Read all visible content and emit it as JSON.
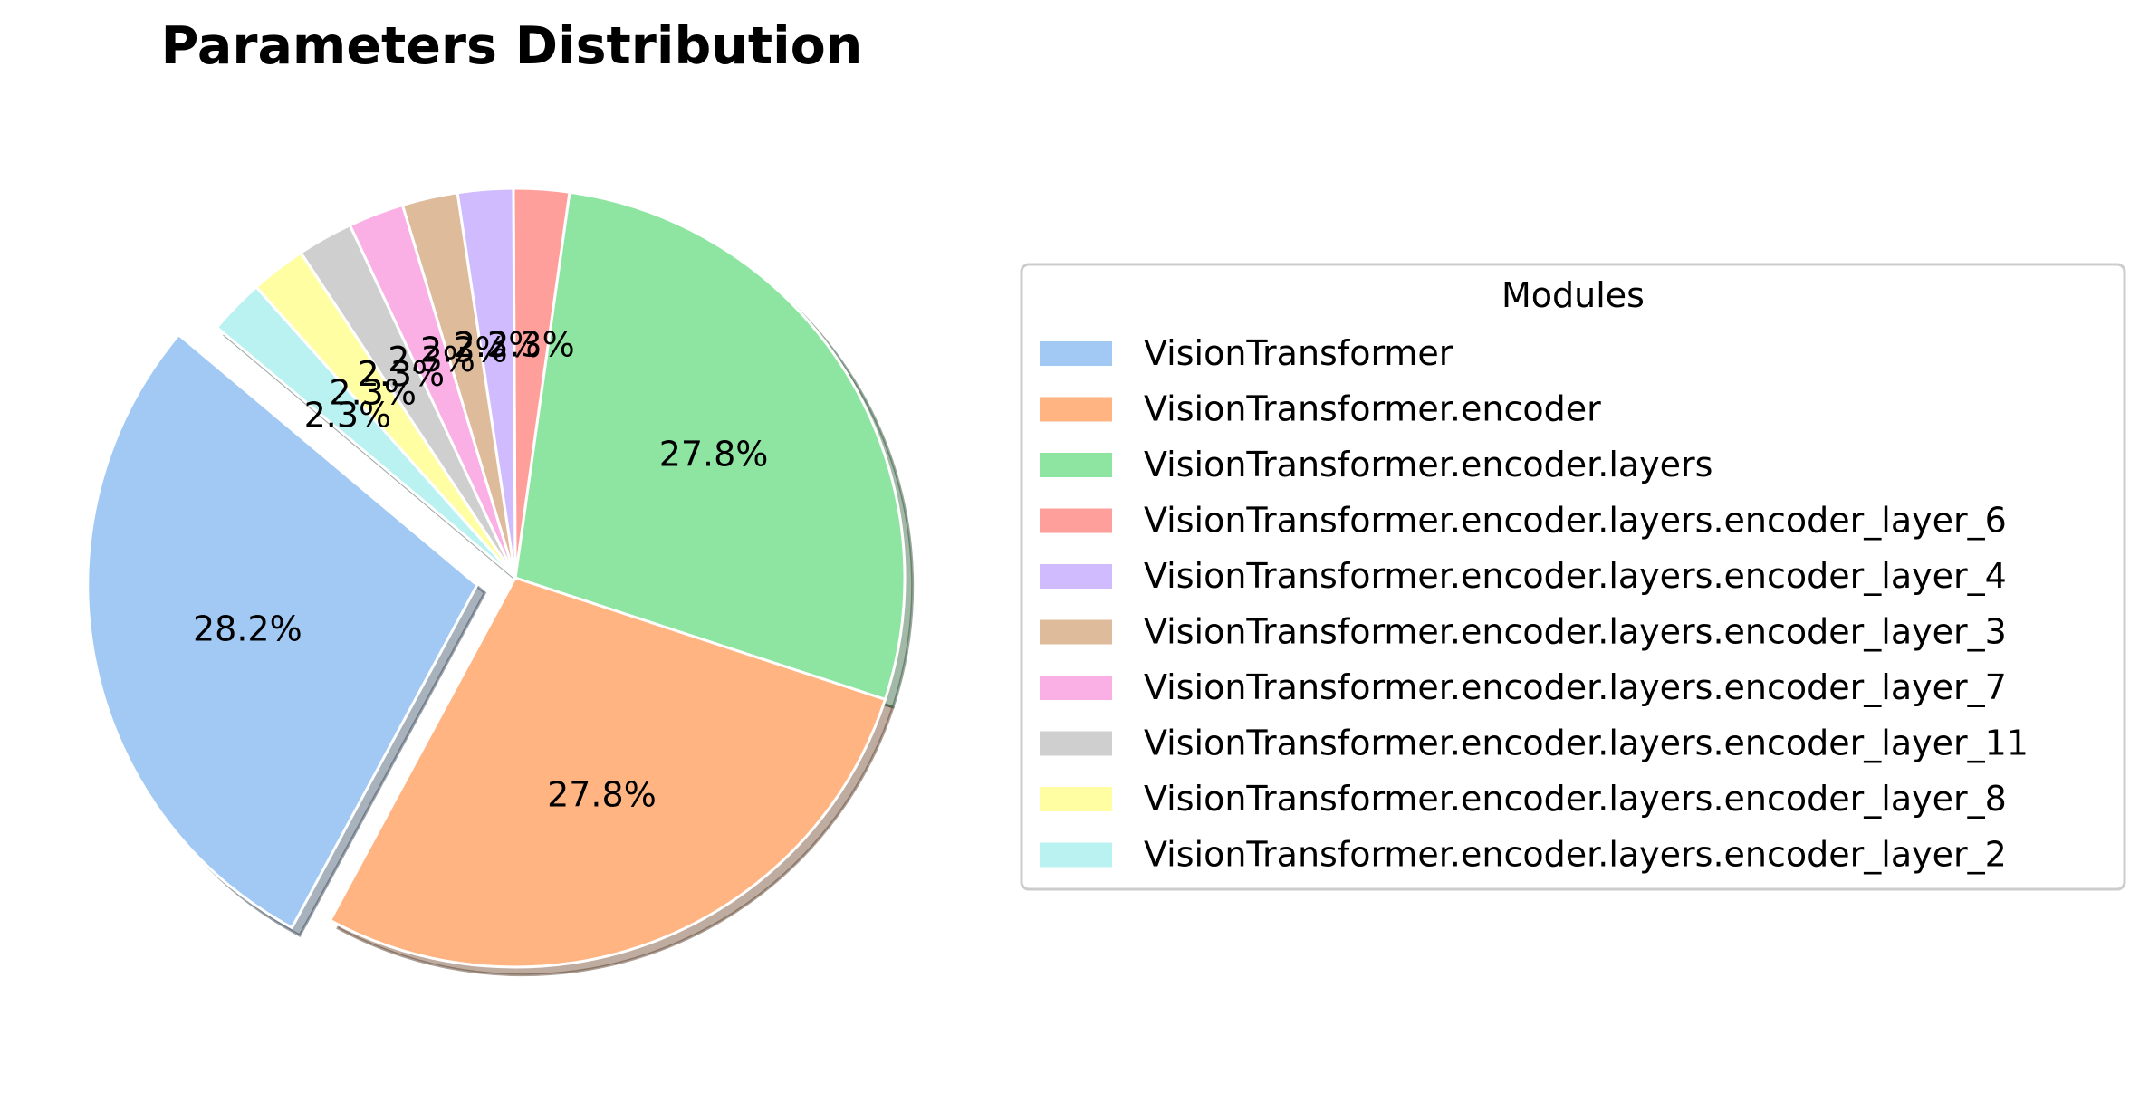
{
  "chart_data": {
    "type": "pie",
    "title": "Parameters Distribution",
    "legend_title": "Modules",
    "legend_position": "right",
    "start_angle_deg": 140,
    "direction": "counterclockwise",
    "exploded_slice": "VisionTransformer",
    "shadow": true,
    "slices": [
      {
        "name": "VisionTransformer",
        "value": 28.2,
        "label": "28.2%",
        "color": "#a1c9f4"
      },
      {
        "name": "VisionTransformer.encoder",
        "value": 27.8,
        "label": "27.8%",
        "color": "#ffb482"
      },
      {
        "name": "VisionTransformer.encoder.layers",
        "value": 27.8,
        "label": "27.8%",
        "color": "#8de5a1"
      },
      {
        "name": "VisionTransformer.encoder.layers.encoder_layer_6",
        "value": 2.3,
        "label": "2.3%",
        "color": "#ff9f9b"
      },
      {
        "name": "VisionTransformer.encoder.layers.encoder_layer_4",
        "value": 2.3,
        "label": "2.3%",
        "color": "#d0bbff"
      },
      {
        "name": "VisionTransformer.encoder.layers.encoder_layer_3",
        "value": 2.3,
        "label": "2.3%",
        "color": "#debb9b"
      },
      {
        "name": "VisionTransformer.encoder.layers.encoder_layer_7",
        "value": 2.3,
        "label": "2.3%",
        "color": "#fab0e4"
      },
      {
        "name": "VisionTransformer.encoder.layers.encoder_layer_11",
        "value": 2.3,
        "label": "2.3%",
        "color": "#cfcfcf"
      },
      {
        "name": "VisionTransformer.encoder.layers.encoder_layer_8",
        "value": 2.3,
        "label": "2.3%",
        "color": "#fffea3"
      },
      {
        "name": "VisionTransformer.encoder.layers.encoder_layer_2",
        "value": 2.3,
        "label": "2.3%",
        "color": "#b9f2f0"
      }
    ]
  }
}
